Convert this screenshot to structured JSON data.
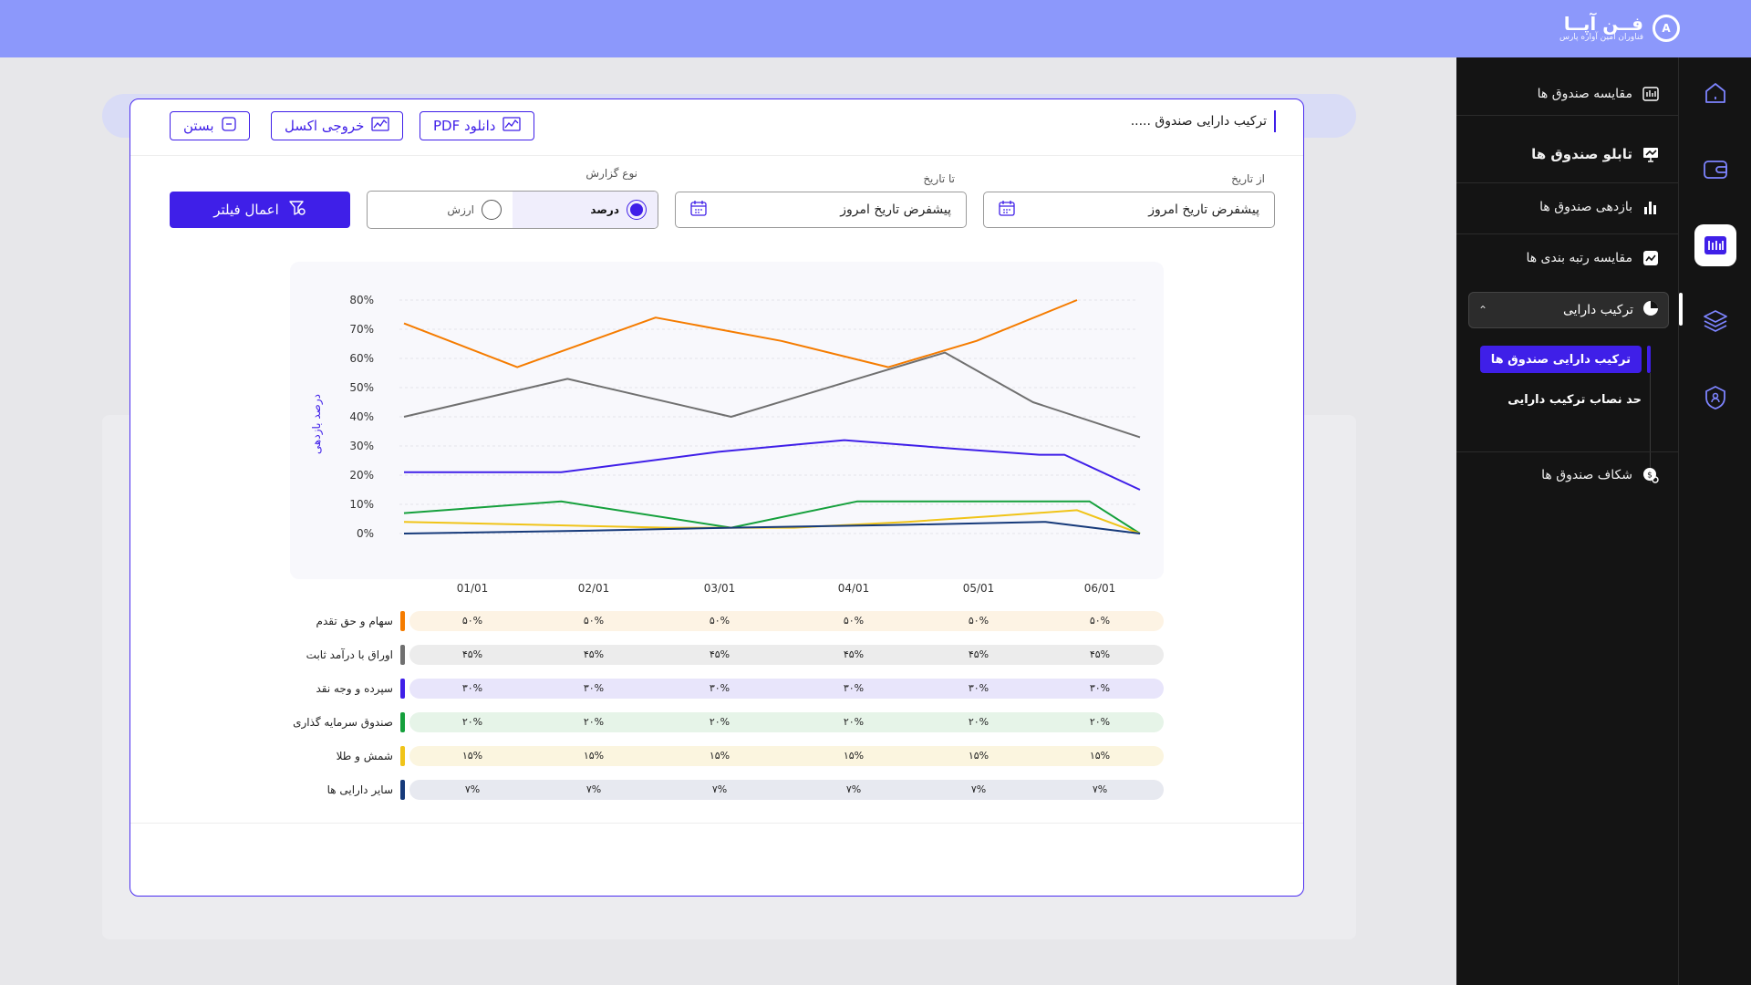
{
  "brand": {
    "name": "فــن آپــا",
    "subtitle": "فناوران امین آواره پارس",
    "mark": "A"
  },
  "sidebar": {
    "items": [
      {
        "label": "مقایسه صندوق ها",
        "icon": "compare-icon"
      },
      {
        "label": "تابلو صندوق ها",
        "icon": "board-icon"
      },
      {
        "label": "بازدهی صندوق ها",
        "icon": "bar-chart-icon"
      },
      {
        "label": "مقایسه رتبه بندی ها",
        "icon": "ranking-icon"
      }
    ],
    "group": {
      "label": "ترکیب دارایی",
      "icon": "pie-icon"
    },
    "subitems": [
      {
        "label": "ترکیب دارایی صندوق ها"
      },
      {
        "label": "حد نصاب ترکیب دارایی"
      }
    ],
    "last": {
      "label": "شکاف صندوق ها",
      "icon": "gap-icon"
    }
  },
  "rail": [
    "home-icon",
    "wallet-icon",
    "dashboard-icon",
    "layers-icon",
    "shield-icon"
  ],
  "modal": {
    "title": "ترکیب دارایی صندوق .....",
    "buttons": {
      "pdf": "دانلود PDF",
      "excel": "خروجی اکسل",
      "close": "بستن"
    },
    "filters": {
      "from_label": "از تاریخ",
      "to_label": "تا تاریخ",
      "from_value": "پیشفرض تاریخ امروز",
      "to_value": "پیشفرض تاریخ امروز",
      "report_type_label": "نوع گزارش",
      "option_percent": "درصد",
      "option_value": "ارزش",
      "apply": "اعمال فیلتر"
    }
  },
  "chart_data": {
    "type": "line",
    "ylabel": "درصد بازدهی",
    "yticks": [
      "0%",
      "10%",
      "20%",
      "30%",
      "40%",
      "50%",
      "60%",
      "70%",
      "80%"
    ],
    "ylim": [
      0,
      80
    ],
    "x": [
      "01/01",
      "02/01",
      "03/01",
      "04/01",
      "05/01",
      "06/01"
    ],
    "grid": true,
    "series": [
      {
        "name": "سهام و حق تقدم",
        "color": "#f57c00",
        "points": [
          [
            0.0,
            72
          ],
          [
            0.9,
            57
          ],
          [
            2.0,
            74
          ],
          [
            3.0,
            66
          ],
          [
            3.85,
            57
          ],
          [
            4.55,
            66
          ],
          [
            5.35,
            80
          ]
        ],
        "row": [
          "۵۰%",
          "۵۰%",
          "۵۰%",
          "۵۰%",
          "۵۰%",
          "۵۰%"
        ],
        "row_bg": "#fdf3e4"
      },
      {
        "name": "اوراق با درآمد ثابت",
        "color": "#707070",
        "points": [
          [
            0.0,
            40
          ],
          [
            1.3,
            53
          ],
          [
            2.6,
            40
          ],
          [
            3.6,
            53
          ],
          [
            4.3,
            62
          ],
          [
            5.0,
            45
          ],
          [
            5.85,
            33
          ]
        ],
        "row": [
          "۴۵%",
          "۴۵%",
          "۴۵%",
          "۴۵%",
          "۴۵%",
          "۴۵%"
        ],
        "row_bg": "#ececec"
      },
      {
        "name": "سپرده و وجه نقد",
        "color": "#3f1fe8",
        "points": [
          [
            0.0,
            21
          ],
          [
            1.25,
            21
          ],
          [
            2.5,
            28
          ],
          [
            3.5,
            32
          ],
          [
            4.4,
            29
          ],
          [
            5.05,
            27
          ],
          [
            5.25,
            27
          ],
          [
            5.85,
            15
          ]
        ],
        "row": [
          "۳۰%",
          "۳۰%",
          "۳۰%",
          "۳۰%",
          "۳۰%",
          "۳۰%"
        ],
        "row_bg": "#e8e5fb"
      },
      {
        "name": "صندوق سرمایه گذاری",
        "color": "#15a03c",
        "points": [
          [
            0.0,
            7
          ],
          [
            1.25,
            11
          ],
          [
            2.6,
            2
          ],
          [
            3.6,
            11
          ],
          [
            4.9,
            11
          ],
          [
            5.45,
            11
          ],
          [
            5.85,
            0
          ]
        ],
        "row": [
          "۲۰%",
          "۲۰%",
          "۲۰%",
          "۲۰%",
          "۲۰%",
          "۲۰%"
        ],
        "row_bg": "#e6f4e8"
      },
      {
        "name": "شمش و طلا",
        "color": "#f0c419",
        "points": [
          [
            0.0,
            4
          ],
          [
            2.1,
            2
          ],
          [
            3.1,
            2
          ],
          [
            4.0,
            4
          ],
          [
            4.7,
            6
          ],
          [
            5.35,
            8
          ],
          [
            5.85,
            0
          ]
        ],
        "row": [
          "۱۵%",
          "۱۵%",
          "۱۵%",
          "۱۵%",
          "۱۵%",
          "۱۵%"
        ],
        "row_bg": "#fbf5df"
      },
      {
        "name": "سایر دارایی ها",
        "color": "#163a7a",
        "points": [
          [
            0.0,
            0
          ],
          [
            1.5,
            1
          ],
          [
            2.6,
            2
          ],
          [
            4.0,
            3
          ],
          [
            5.1,
            4
          ],
          [
            5.85,
            0
          ]
        ],
        "row": [
          "۷%",
          "۷%",
          "۷%",
          "۷%",
          "۷%",
          "۷%"
        ],
        "row_bg": "#e7e9f0"
      }
    ]
  }
}
